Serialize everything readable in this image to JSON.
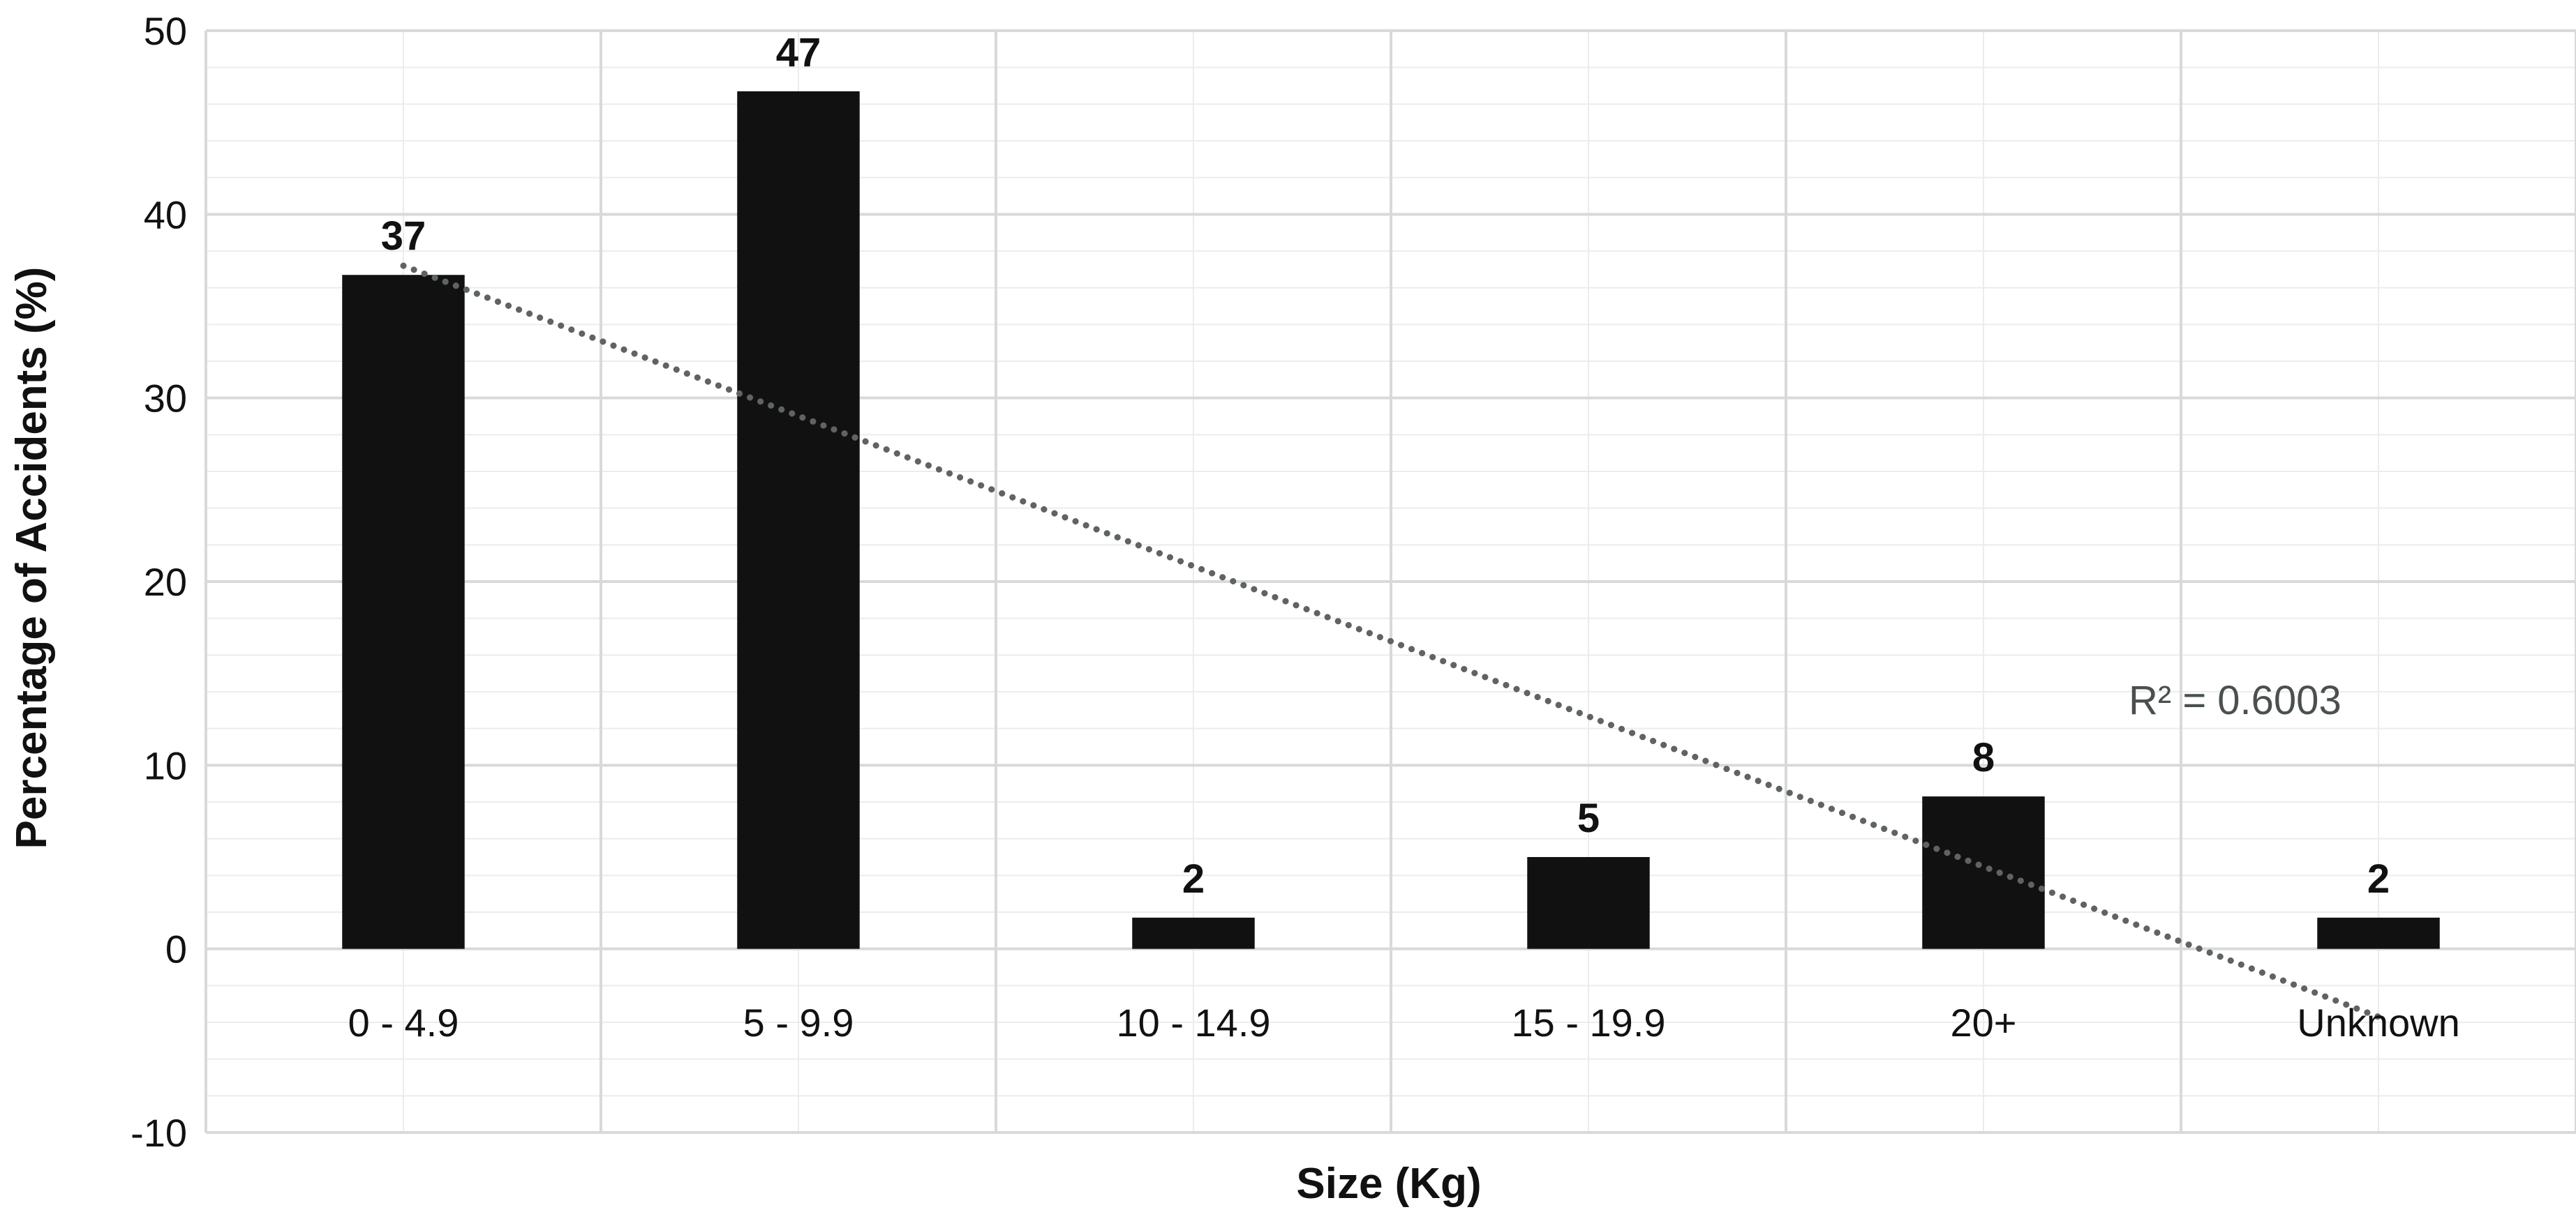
{
  "chart_data": {
    "type": "bar",
    "categories": [
      "0 - 4.9",
      "5 - 9.9",
      "10 - 14.9",
      "15 - 19.9",
      "20+",
      "Unknown"
    ],
    "values": [
      36.7,
      46.7,
      1.7,
      5.0,
      8.3,
      1.7
    ],
    "data_labels": [
      "37",
      "47",
      "2",
      "5",
      "8",
      "2"
    ],
    "xlabel": "Size (Kg)",
    "ylabel": "Percentage of Accidents (%)",
    "ylim": [
      -10,
      50
    ],
    "yticks": [
      -10,
      0,
      10,
      20,
      30,
      40,
      50
    ],
    "grid": true,
    "legend": "none",
    "bar_color": "#111111",
    "trendline": {
      "type": "linear",
      "style": "dotted",
      "color": "#5f6363",
      "start_value": 37.2,
      "end_value": -3.7,
      "r_squared_label": "R² = 0.6003"
    }
  }
}
